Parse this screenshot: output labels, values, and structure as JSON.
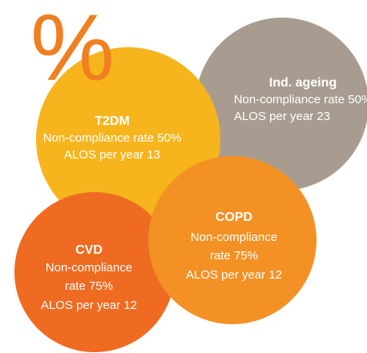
{
  "symbol": "%",
  "nodes": [
    {
      "title": "Ind. ageing",
      "lines": [
        "Non-compliance rate 50%",
        "ALOS per year 23"
      ]
    },
    {
      "title": "T2DM",
      "lines": [
        "Non-compliance rate 50%",
        "ALOS per year 13"
      ]
    },
    {
      "title": "CVD",
      "lines": [
        "Non-compliance",
        "rate 75%",
        "ALOS per year 12"
      ]
    },
    {
      "title": "COPD",
      "lines": [
        "Non-compliance",
        "rate 75%",
        "ALOS per year 12"
      ]
    }
  ]
}
